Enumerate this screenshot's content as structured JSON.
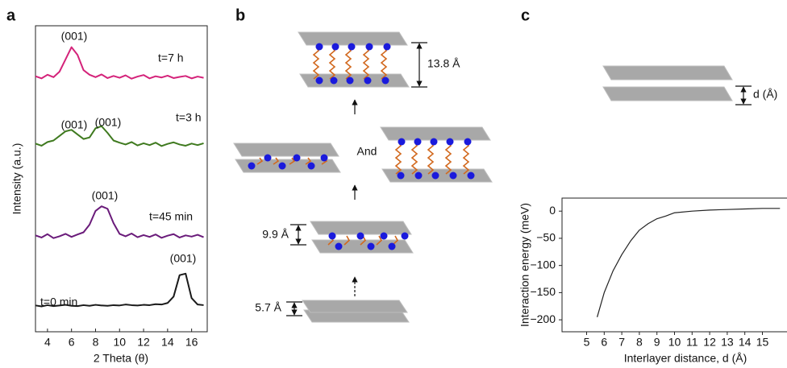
{
  "chart_data": [
    {
      "type": "line",
      "panel_label": "a",
      "x_label": "2 Theta (θ)",
      "y_label": "Intensity (a.u.)",
      "x": [
        3,
        3.5,
        4,
        4.5,
        5,
        5.5,
        6,
        6.5,
        7,
        7.5,
        8,
        8.5,
        9,
        9.5,
        10,
        10.5,
        11,
        11.5,
        12,
        12.5,
        13,
        13.5,
        14,
        14.5,
        15,
        15.5,
        16,
        16.5,
        17
      ],
      "xlim": [
        3,
        17.3
      ],
      "xticks": [
        4,
        6,
        8,
        10,
        12,
        14,
        16
      ],
      "ylim": [
        0,
        100
      ],
      "series": [
        {
          "name": "t=7 h",
          "color": "#d4237a",
          "annotations": [
            "(001)"
          ],
          "values": [
            83.5,
            82.8,
            84.0,
            83.2,
            85.0,
            89.0,
            93.0,
            90.5,
            85.5,
            84.0,
            83.2,
            84.1,
            82.9,
            83.6,
            83.0,
            83.8,
            82.7,
            83.4,
            83.9,
            82.8,
            83.5,
            83.1,
            83.7,
            82.9,
            83.3,
            83.6,
            82.8,
            83.4,
            83.0
          ]
        },
        {
          "name": "t=3 h",
          "color": "#3f7a1f",
          "annotations": [
            "(001)",
            "(001)"
          ],
          "values": [
            61.5,
            60.8,
            62.0,
            62.5,
            64.0,
            65.5,
            66.0,
            64.5,
            63.0,
            63.5,
            66.5,
            67.2,
            65.0,
            62.5,
            61.8,
            61.2,
            62.0,
            60.9,
            61.6,
            61.0,
            61.8,
            60.7,
            61.4,
            61.9,
            61.2,
            60.8,
            61.5,
            61.0,
            61.6
          ]
        },
        {
          "name": "t=45 min",
          "color": "#6a1b7a",
          "annotations": [
            "(001)"
          ],
          "values": [
            31.5,
            30.8,
            31.9,
            30.6,
            31.2,
            32.0,
            31.0,
            31.8,
            32.5,
            35.0,
            39.5,
            41.0,
            40.2,
            35.5,
            32.0,
            31.2,
            32.1,
            30.9,
            31.6,
            31.0,
            31.8,
            30.7,
            31.4,
            31.9,
            30.8,
            31.5,
            31.1,
            31.7,
            30.9
          ]
        },
        {
          "name": "t=0 min",
          "color": "#1a1a1a",
          "annotations": [
            "(001)"
          ],
          "values": [
            8.6,
            8.3,
            8.7,
            8.4,
            8.6,
            8.8,
            8.5,
            8.4,
            8.7,
            8.5,
            8.8,
            8.6,
            8.5,
            8.7,
            8.6,
            8.9,
            8.7,
            8.6,
            8.8,
            8.7,
            9.0,
            8.9,
            9.4,
            11.5,
            18.5,
            19.0,
            11.0,
            8.9,
            8.7
          ]
        }
      ]
    },
    {
      "type": "line",
      "panel_label": "c",
      "x_label": "Interlayer distance, d (Å)",
      "y_label": "Interaction energy (meV)",
      "diagram_label": "d (Å)",
      "color": "#222222",
      "x": [
        5.6,
        6,
        6.5,
        7,
        7.5,
        8,
        8.5,
        9,
        9.5,
        10,
        11,
        12,
        13,
        14,
        15,
        16
      ],
      "values": [
        -195,
        -150,
        -110,
        -80,
        -55,
        -35,
        -23,
        -14,
        -9,
        -3,
        0,
        2,
        3,
        4,
        5,
        5
      ],
      "xlim": [
        3.6,
        16.4
      ],
      "xticks": [
        5,
        6,
        7,
        8,
        9,
        10,
        11,
        12,
        13,
        14,
        15
      ],
      "ylim": [
        -222,
        24
      ],
      "yticks": [
        {
          "value": -200,
          "label": "−200"
        },
        {
          "value": -150,
          "label": "−150"
        },
        {
          "value": -100,
          "label": "−100"
        },
        {
          "value": -50,
          "label": "−50"
        },
        0
      ]
    }
  ],
  "diagram": {
    "panel_label": "b",
    "labels": [
      "13.8 Å",
      "And",
      "9.9 Å",
      "5.7 Å"
    ]
  }
}
